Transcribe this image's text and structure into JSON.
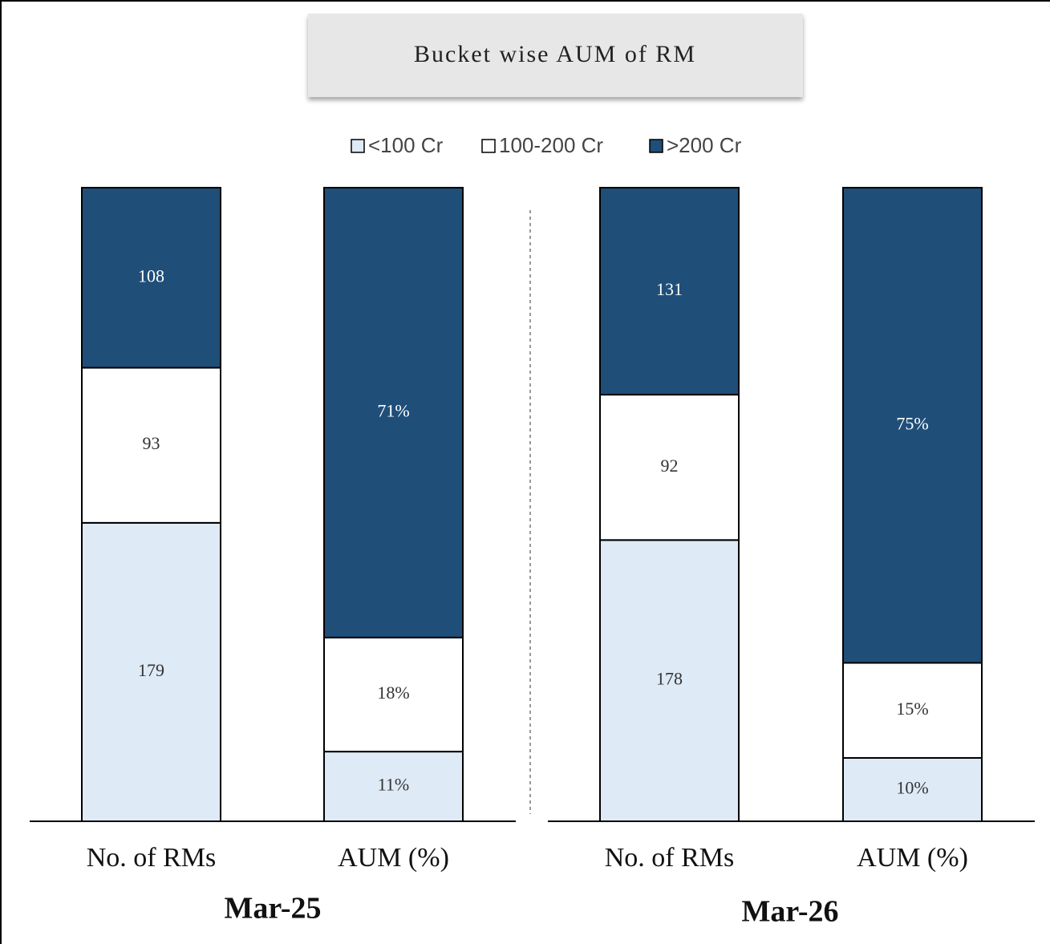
{
  "chart_data": {
    "type": "bar",
    "stacking": "percent",
    "title": "Bucket wise AUM of RM",
    "groups": [
      "Mar-25",
      "Mar-26"
    ],
    "categories": [
      "No. of RMs",
      "AUM (%)",
      "No. of RMs",
      "AUM (%)"
    ],
    "series": [
      {
        "name": "<100 Cr",
        "color": "#deeaf6",
        "values": [
          179,
          11,
          178,
          10
        ],
        "value_labels": [
          "179",
          "11%",
          "178",
          "10%"
        ]
      },
      {
        "name": "100-200 Cr",
        "color": "#ffffff",
        "values": [
          93,
          18,
          92,
          15
        ],
        "value_labels": [
          "93",
          "18%",
          "92",
          "15%"
        ]
      },
      {
        "name": ">200 Cr",
        "color": "#1f4e79",
        "values": [
          108,
          71,
          131,
          75
        ],
        "value_labels": [
          "108",
          "71%",
          "131",
          "75%"
        ]
      }
    ]
  }
}
